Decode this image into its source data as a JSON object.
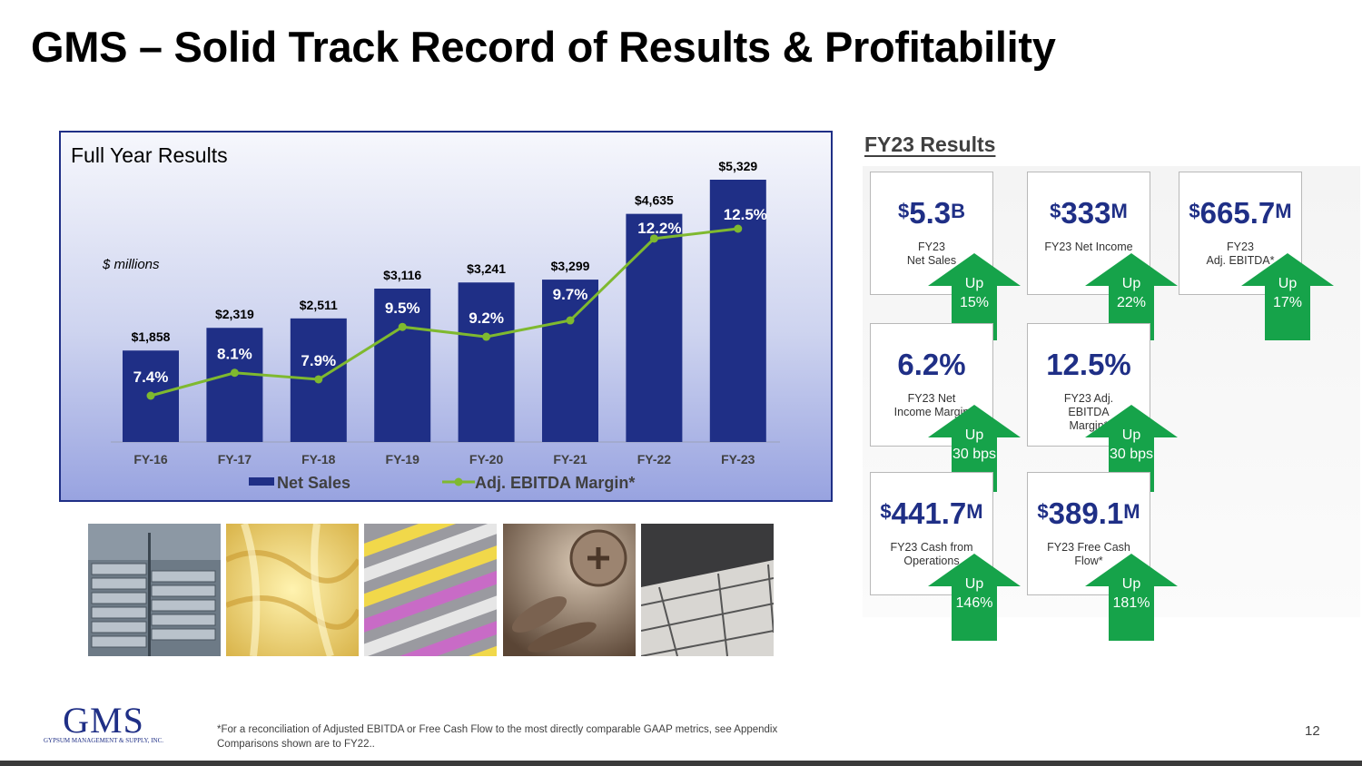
{
  "title": "GMS – Solid Track Record of Results & Profitability",
  "chart_data": {
    "type": "bar",
    "title": "Full Year Results",
    "ylabel": "$ millions",
    "categories": [
      "FY-16",
      "FY-17",
      "FY-18",
      "FY-19",
      "FY-20",
      "FY-21",
      "FY-22",
      "FY-23"
    ],
    "series": [
      {
        "name": "Net Sales",
        "kind": "bar",
        "color": "#1f2f86",
        "values": [
          1858,
          2319,
          2511,
          3116,
          3241,
          3299,
          4635,
          5329
        ],
        "labels": [
          "$1,858",
          "$2,319",
          "$2,511",
          "$3,116",
          "$3,241",
          "$3,299",
          "$4,635",
          "$5,329"
        ]
      },
      {
        "name": "Adj. EBITDA Margin*",
        "kind": "line",
        "color": "#7fb92f",
        "values": [
          7.4,
          8.1,
          7.9,
          9.5,
          9.2,
          9.7,
          12.2,
          12.5
        ],
        "labels": [
          "7.4%",
          "8.1%",
          "7.9%",
          "9.5%",
          "9.2%",
          "9.7%",
          "12.2%",
          "12.5%"
        ]
      }
    ],
    "ylim": [
      0,
      5329
    ],
    "legend": "bottom"
  },
  "results": {
    "heading": "FY23 Results",
    "cards": [
      {
        "value": "5.3",
        "prefix": "$",
        "suffix": "B",
        "label": "FY23\nNet Sales",
        "up": "Up",
        "change": "15%"
      },
      {
        "value": "333",
        "prefix": "$",
        "suffix": "M",
        "label": "FY23 Net Income",
        "up": "Up",
        "change": "22%"
      },
      {
        "value": "665.7",
        "prefix": "$",
        "suffix": "M",
        "label": "FY23\nAdj. EBITDA*",
        "up": "Up",
        "change": "17%"
      },
      {
        "value": "6.2%",
        "prefix": "",
        "suffix": "",
        "label": "FY23 Net\nIncome Margin",
        "up": "Up",
        "change": "30 bps"
      },
      {
        "value": "12.5%",
        "prefix": "",
        "suffix": "",
        "label": "FY23 Adj.\nEBITDA\nMargin*",
        "up": "Up",
        "change": "30 bps"
      },
      {
        "value": "441.7",
        "prefix": "$",
        "suffix": "M",
        "label": "FY23 Cash from\nOperations",
        "up": "Up",
        "change": "146%"
      },
      {
        "value": "389.1",
        "prefix": "$",
        "suffix": "M",
        "label": "FY23 Free Cash\nFlow*",
        "up": "Up",
        "change": "181%"
      }
    ]
  },
  "colors": {
    "brand": "#1f2f86",
    "arrow": "#16a34a",
    "line": "#7fb92f"
  },
  "logo": {
    "text": "GMS",
    "subtitle": "GYPSUM MANAGEMENT & SUPPLY, INC."
  },
  "footnote": {
    "line1": "*For a reconciliation of Adjusted EBITDA or Free Cash Flow to the most directly comparable GAAP metrics, see Appendix",
    "line2": "Comparisons shown are to FY22.."
  },
  "page_number": "12",
  "photos": [
    "steel-studs-photo",
    "insulation-photo",
    "drywall-photo",
    "screws-photo",
    "ceiling-tiles-photo"
  ]
}
